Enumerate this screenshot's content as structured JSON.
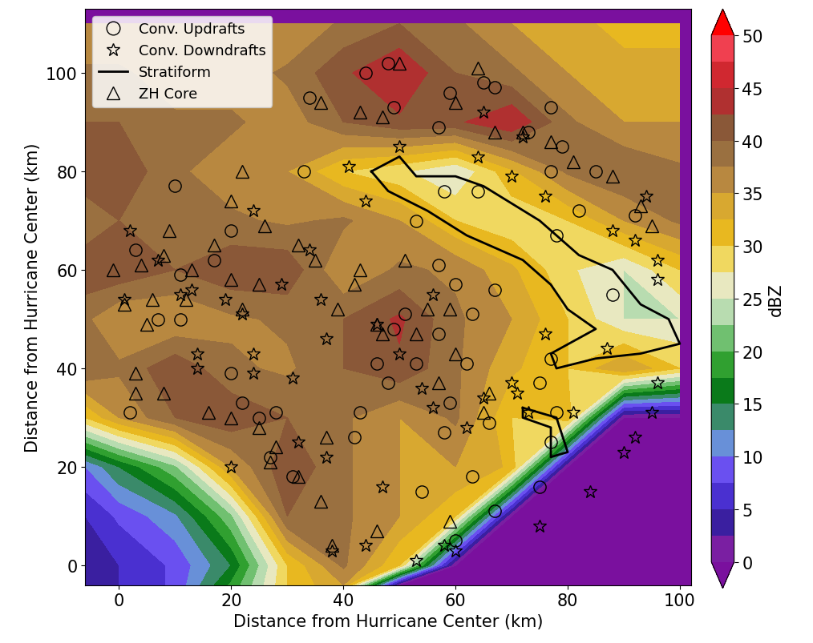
{
  "chart_data": {
    "type": "contour",
    "xlabel": "Distance from Hurricane Center (km)",
    "ylabel": "Distance from Hurricane Center (km)",
    "xlim": [
      -6,
      102
    ],
    "ylim": [
      -4,
      113
    ],
    "xticks": [
      0,
      20,
      40,
      60,
      80,
      100
    ],
    "yticks": [
      0,
      20,
      40,
      60,
      80,
      100
    ],
    "legend": "upper left",
    "cells": {
      "x": [
        -6,
        0,
        10,
        20,
        30,
        40,
        50,
        60,
        70,
        80,
        90,
        100
      ],
      "y": [
        -4,
        0,
        10,
        20,
        30,
        40,
        50,
        60,
        70,
        80,
        90,
        100,
        110
      ],
      "values": [
        [
          5,
          5,
          8,
          18,
          30,
          35,
          0,
          0,
          0,
          0,
          0,
          0
        ],
        [
          5,
          5,
          8,
          15,
          30,
          38,
          30,
          0,
          0,
          0,
          0,
          0
        ],
        [
          5,
          8,
          12,
          22,
          40,
          38,
          35,
          30,
          0,
          0,
          0,
          0
        ],
        [
          10,
          15,
          22,
          35,
          42,
          38,
          35,
          35,
          32,
          0,
          0,
          0
        ],
        [
          30,
          35,
          40,
          42,
          40,
          38,
          35,
          38,
          30,
          32,
          0,
          0
        ],
        [
          40,
          38,
          42,
          38,
          37,
          40,
          42,
          38,
          33,
          30,
          35,
          30
        ],
        [
          38,
          35,
          35,
          37,
          38,
          40,
          43,
          38,
          35,
          30,
          25,
          25
        ],
        [
          42,
          42,
          40,
          42,
          42,
          35,
          38,
          37,
          33,
          28,
          25,
          30
        ],
        [
          38,
          40,
          38,
          38,
          37,
          38,
          35,
          30,
          28,
          30,
          35,
          38
        ],
        [
          42,
          42,
          38,
          36,
          35,
          30,
          28,
          25,
          32,
          38,
          40,
          38
        ],
        [
          40,
          40,
          38,
          38,
          36,
          40,
          42,
          42,
          45,
          38,
          35,
          35
        ],
        [
          38,
          38,
          36,
          36,
          38,
          42,
          45,
          40,
          38,
          35,
          33,
          33
        ],
        [
          35,
          35,
          35,
          35,
          35,
          38,
          40,
          38,
          35,
          33,
          32,
          32
        ]
      ]
    },
    "colorbar": {
      "label": "dBZ",
      "lim": [
        0,
        50
      ],
      "ticks": [
        0,
        5,
        10,
        15,
        20,
        25,
        30,
        35,
        40,
        45,
        50
      ],
      "levels": [
        0,
        2.5,
        5,
        7.5,
        10,
        12.5,
        15,
        17.5,
        20,
        22.5,
        25,
        27.5,
        30,
        32.5,
        35,
        37.5,
        40,
        42.5,
        45,
        47.5,
        50
      ]
    },
    "series": [
      {
        "name": "Conv. Updrafts",
        "marker": "circle",
        "color": "#000000",
        "points": [
          [
            44,
            100
          ],
          [
            48,
            102
          ],
          [
            49,
            93
          ],
          [
            34,
            95
          ],
          [
            57,
            89
          ],
          [
            59,
            96
          ],
          [
            65,
            98
          ],
          [
            67,
            97
          ],
          [
            73,
            88
          ],
          [
            77,
            93
          ],
          [
            79,
            85
          ],
          [
            85,
            80
          ],
          [
            77,
            80
          ],
          [
            33,
            80
          ],
          [
            10,
            77
          ],
          [
            20,
            68
          ],
          [
            17,
            62
          ],
          [
            3,
            64
          ],
          [
            11,
            59
          ],
          [
            7,
            50
          ],
          [
            11,
            50
          ],
          [
            53,
            70
          ],
          [
            58,
            76
          ],
          [
            64,
            76
          ],
          [
            78,
            67
          ],
          [
            82,
            72
          ],
          [
            88,
            55
          ],
          [
            92,
            71
          ],
          [
            57,
            61
          ],
          [
            51,
            51
          ],
          [
            49,
            48
          ],
          [
            46,
            41
          ],
          [
            48,
            37
          ],
          [
            53,
            41
          ],
          [
            57,
            47
          ],
          [
            60,
            57
          ],
          [
            63,
            51
          ],
          [
            67,
            56
          ],
          [
            62,
            41
          ],
          [
            59,
            33
          ],
          [
            58,
            27
          ],
          [
            66,
            29
          ],
          [
            63,
            18
          ],
          [
            54,
            15
          ],
          [
            67,
            11
          ],
          [
            60,
            5
          ],
          [
            43,
            31
          ],
          [
            42,
            26
          ],
          [
            22,
            33
          ],
          [
            20,
            39
          ],
          [
            25,
            30
          ],
          [
            28,
            31
          ],
          [
            27,
            22
          ],
          [
            31,
            18
          ],
          [
            2,
            31
          ],
          [
            75,
            37
          ],
          [
            77,
            42
          ],
          [
            77,
            25
          ],
          [
            78,
            31
          ],
          [
            75,
            16
          ]
        ]
      },
      {
        "name": "Conv. Downdrafts",
        "marker": "star",
        "color": "#000000",
        "points": [
          [
            50,
            85
          ],
          [
            65,
            92
          ],
          [
            64,
            83
          ],
          [
            41,
            81
          ],
          [
            44,
            74
          ],
          [
            70,
            79
          ],
          [
            76,
            75
          ],
          [
            72,
            87
          ],
          [
            94,
            75
          ],
          [
            92,
            66
          ],
          [
            96,
            62
          ],
          [
            88,
            68
          ],
          [
            96,
            58
          ],
          [
            2,
            68
          ],
          [
            1,
            54
          ],
          [
            7,
            62
          ],
          [
            13,
            56
          ],
          [
            19,
            54
          ],
          [
            24,
            72
          ],
          [
            34,
            64
          ],
          [
            36,
            54
          ],
          [
            29,
            57
          ],
          [
            22,
            51
          ],
          [
            24,
            43
          ],
          [
            24,
            39
          ],
          [
            14,
            43
          ],
          [
            14,
            40
          ],
          [
            37,
            46
          ],
          [
            46,
            49
          ],
          [
            50,
            43
          ],
          [
            56,
            55
          ],
          [
            54,
            36
          ],
          [
            56,
            32
          ],
          [
            62,
            28
          ],
          [
            65,
            34
          ],
          [
            70,
            37
          ],
          [
            71,
            35
          ],
          [
            73,
            31
          ],
          [
            81,
            31
          ],
          [
            87,
            44
          ],
          [
            96,
            37
          ],
          [
            95,
            31
          ],
          [
            92,
            26
          ],
          [
            90,
            23
          ],
          [
            84,
            15
          ],
          [
            75,
            8
          ],
          [
            60,
            3
          ],
          [
            58,
            4
          ],
          [
            53,
            1
          ],
          [
            47,
            16
          ],
          [
            38,
            3
          ],
          [
            37,
            22
          ],
          [
            32,
            25
          ],
          [
            20,
            20
          ],
          [
            31,
            38
          ],
          [
            44,
            4
          ],
          [
            11,
            55
          ],
          [
            76,
            47
          ]
        ]
      },
      {
        "name": "Stratiform",
        "line_style": "solid",
        "color": "#000000",
        "outlines": [
          [
            [
              45,
              80
            ],
            [
              50,
              83
            ],
            [
              53,
              79
            ],
            [
              60,
              79
            ],
            [
              65,
              77
            ],
            [
              75,
              70
            ],
            [
              82,
              63
            ],
            [
              88,
              60
            ],
            [
              93,
              53
            ],
            [
              98,
              50
            ],
            [
              100,
              45
            ],
            [
              93,
              43
            ],
            [
              85,
              42
            ],
            [
              78,
              40
            ],
            [
              77,
              43
            ],
            [
              85,
              48
            ],
            [
              80,
              52
            ],
            [
              77,
              57
            ],
            [
              72,
              62
            ],
            [
              62,
              67
            ],
            [
              55,
              72
            ],
            [
              48,
              76
            ],
            [
              45,
              80
            ]
          ],
          [
            [
              72,
              32
            ],
            [
              78,
              30
            ],
            [
              80,
              23
            ],
            [
              77,
              22
            ],
            [
              77,
              28
            ],
            [
              72,
              30
            ],
            [
              72,
              32
            ]
          ]
        ]
      },
      {
        "name": "ZH Core",
        "marker": "triangle",
        "color": "#000000",
        "points": [
          [
            36,
            94
          ],
          [
            43,
            92
          ],
          [
            47,
            91
          ],
          [
            50,
            102
          ],
          [
            64,
            101
          ],
          [
            60,
            94
          ],
          [
            67,
            88
          ],
          [
            72,
            88
          ],
          [
            77,
            86
          ],
          [
            81,
            82
          ],
          [
            88,
            79
          ],
          [
            95,
            69
          ],
          [
            93,
            73
          ],
          [
            22,
            80
          ],
          [
            20,
            74
          ],
          [
            26,
            69
          ],
          [
            32,
            65
          ],
          [
            35,
            62
          ],
          [
            17,
            65
          ],
          [
            9,
            68
          ],
          [
            8,
            63
          ],
          [
            -1,
            60
          ],
          [
            1,
            53
          ],
          [
            6,
            54
          ],
          [
            4,
            61
          ],
          [
            13,
            60
          ],
          [
            20,
            58
          ],
          [
            25,
            57
          ],
          [
            22,
            52
          ],
          [
            12,
            54
          ],
          [
            39,
            52
          ],
          [
            42,
            57
          ],
          [
            43,
            60
          ],
          [
            46,
            49
          ],
          [
            47,
            47
          ],
          [
            53,
            47
          ],
          [
            55,
            52
          ],
          [
            59,
            52
          ],
          [
            51,
            62
          ],
          [
            57,
            37
          ],
          [
            60,
            43
          ],
          [
            66,
            35
          ],
          [
            65,
            31
          ],
          [
            3,
            35
          ],
          [
            3,
            39
          ],
          [
            8,
            35
          ],
          [
            16,
            31
          ],
          [
            20,
            30
          ],
          [
            25,
            28
          ],
          [
            28,
            24
          ],
          [
            27,
            21
          ],
          [
            32,
            18
          ],
          [
            36,
            13
          ],
          [
            37,
            26
          ],
          [
            38,
            4
          ],
          [
            46,
            7
          ],
          [
            59,
            9
          ],
          [
            5,
            49
          ]
        ]
      }
    ]
  }
}
